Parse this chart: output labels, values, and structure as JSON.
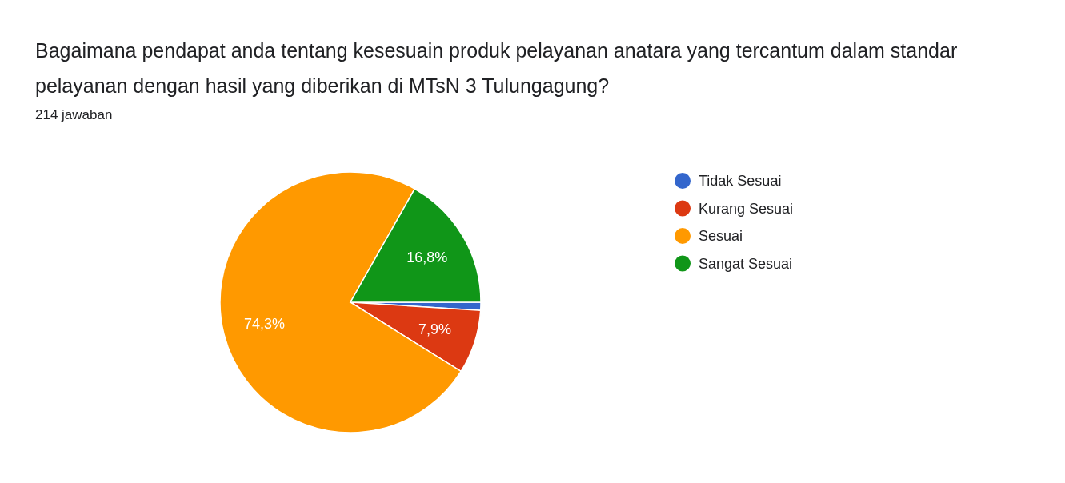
{
  "chart_data": {
    "type": "pie",
    "title": "Bagaimana pendapat anda tentang kesesuain produk pelayanan anatara yang tercantum dalam standar pelayanan dengan hasil yang diberikan di MTsN 3 Tulungagung?",
    "subtitle": "214 jawaban",
    "categories": [
      "Tidak Sesuai",
      "Kurang Sesuai",
      "Sesuai",
      "Sangat Sesuai"
    ],
    "values": [
      1.0,
      7.9,
      74.3,
      16.8
    ],
    "colors": [
      "#3366cc",
      "#dc3912",
      "#ff9900",
      "#109618"
    ],
    "value_labels": [
      null,
      "7,9%",
      "74,3%",
      "16,8%"
    ],
    "legend": "right"
  }
}
